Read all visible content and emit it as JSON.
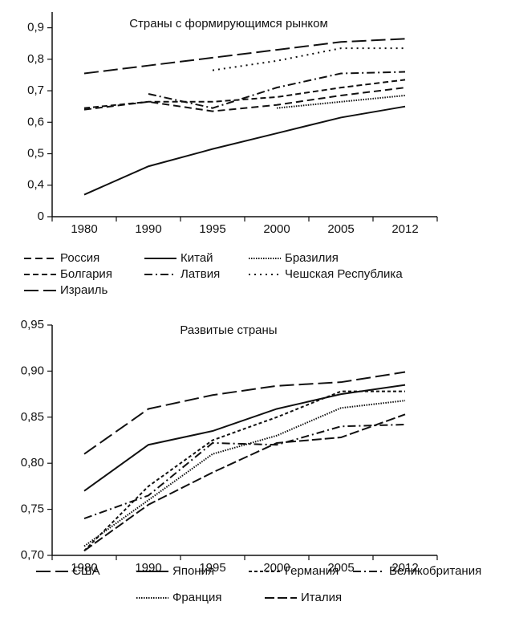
{
  "chart_data": [
    {
      "type": "line",
      "title": "Страны с формирующимся рынком",
      "categories": [
        "1980",
        "1990",
        "1995",
        "2000",
        "2005",
        "2012"
      ],
      "ylim": [
        0,
        0.95
      ],
      "y_axis_break": [
        0,
        0.3
      ],
      "yticks": [
        {
          "value": 0,
          "label": "0"
        },
        {
          "value": 0.4,
          "label": "0,4"
        },
        {
          "value": 0.5,
          "label": "0,5"
        },
        {
          "value": 0.6,
          "label": "0,6"
        },
        {
          "value": 0.7,
          "label": "0,7"
        },
        {
          "value": 0.8,
          "label": "0,8"
        },
        {
          "value": 0.9,
          "label": "0,9"
        }
      ],
      "series": [
        {
          "name": "Россия",
          "color": "#111111",
          "dash": "9,5",
          "values": [
            0.64,
            0.665,
            0.635,
            0.655,
            0.685,
            0.71
          ]
        },
        {
          "name": "Китай",
          "color": "#111111",
          "dash": "none",
          "values": [
            0.37,
            0.46,
            0.515,
            0.565,
            0.615,
            0.65
          ]
        },
        {
          "name": "Бразилия",
          "color": "#111111",
          "dash": "1.5,1.5",
          "values": [
            null,
            null,
            null,
            0.645,
            0.665,
            0.685
          ]
        },
        {
          "name": "Болгария",
          "color": "#111111",
          "dash": "7,4",
          "values": [
            0.645,
            0.665,
            0.665,
            0.68,
            0.71,
            0.735
          ]
        },
        {
          "name": "Латвия",
          "color": "#111111",
          "dash": "10,4,2,4",
          "values": [
            null,
            0.69,
            0.645,
            0.71,
            0.755,
            0.76
          ]
        },
        {
          "name": "Чешская Республика",
          "color": "#111111",
          "dash": "2,5",
          "values": [
            null,
            null,
            0.765,
            0.795,
            0.835,
            0.835
          ]
        },
        {
          "name": "Израиль",
          "color": "#111111",
          "dash": "18,6",
          "values": [
            0.755,
            0.78,
            0.805,
            0.83,
            0.855,
            0.865
          ]
        }
      ]
    },
    {
      "type": "line",
      "title": "Развитые страны",
      "categories": [
        "1980",
        "1990",
        "1995",
        "2000",
        "2005",
        "2012"
      ],
      "ylim": [
        0.7,
        0.95
      ],
      "yticks": [
        {
          "value": 0.7,
          "label": "0,70"
        },
        {
          "value": 0.75,
          "label": "0,75"
        },
        {
          "value": 0.8,
          "label": "0,80"
        },
        {
          "value": 0.85,
          "label": "0,85"
        },
        {
          "value": 0.9,
          "label": "0,90"
        },
        {
          "value": 0.95,
          "label": "0,95"
        }
      ],
      "series": [
        {
          "name": "США",
          "color": "#111111",
          "dash": "18,6",
          "values": [
            0.81,
            0.859,
            0.874,
            0.884,
            0.888,
            0.899
          ]
        },
        {
          "name": "Япония",
          "color": "#111111",
          "dash": "none",
          "values": [
            0.77,
            0.82,
            0.835,
            0.859,
            0.875,
            0.885
          ]
        },
        {
          "name": "Германия",
          "color": "#111111",
          "dash": "4,3",
          "values": [
            0.705,
            0.775,
            0.825,
            0.85,
            0.878,
            0.878
          ]
        },
        {
          "name": "Великобритания",
          "color": "#111111",
          "dash": "10,4,2,4",
          "values": [
            0.74,
            0.765,
            0.822,
            0.82,
            0.84,
            0.842
          ]
        },
        {
          "name": "Франция",
          "color": "#111111",
          "dash": "1.5,1.5",
          "values": [
            0.71,
            0.76,
            0.81,
            0.83,
            0.86,
            0.868
          ]
        },
        {
          "name": "Италия",
          "color": "#111111",
          "dash": "12,4",
          "values": [
            0.705,
            0.755,
            0.79,
            0.822,
            0.828,
            0.853
          ]
        }
      ]
    }
  ]
}
